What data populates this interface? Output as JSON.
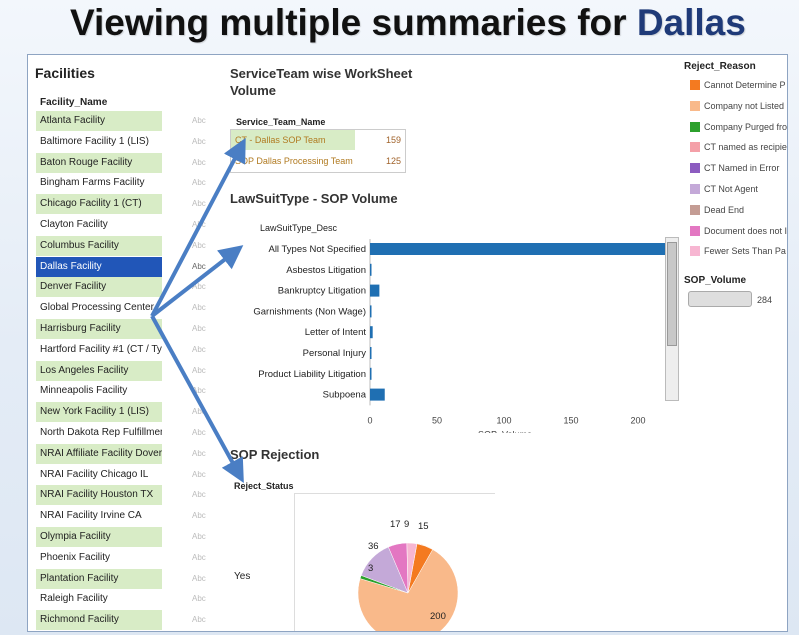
{
  "slide": {
    "title_prefix": "Viewing multiple summaries for ",
    "title_highlight": "Dallas"
  },
  "facilities": {
    "title": "Facilities",
    "column_header": "Facility_Name",
    "abc_label": "Abc",
    "selected": "Dallas Facility",
    "items": [
      "Atlanta Facility",
      "Baltimore Facility 1 (LIS)",
      "Baton Rouge Facility",
      "Bingham Farms Facility",
      "Chicago Facility 1 (CT)",
      "Clayton Facility",
      "Columbus Facility",
      "Dallas Facility",
      "Denver Facility",
      "Global Processing Center",
      "Harrisburg Facility",
      "Hartford Facility #1 (CT / TyM..",
      "Los Angeles Facility",
      "Minneapolis Facility",
      "New York Facility 1 (LIS)",
      "North Dakota Rep Fulfillment",
      "NRAI Affiliate Facility Dover ..",
      "NRAI Facility Chicago IL",
      "NRAI Facility Houston TX",
      "NRAI Facility Irvine CA",
      "Olympia Facility",
      "Phoenix Facility",
      "Plantation Facility",
      "Raleigh Facility",
      "Richmond Facility"
    ]
  },
  "service_team": {
    "title": "ServiceTeam wise WorkSheet Volume",
    "column_header": "Service_Team_Name",
    "rows": [
      {
        "name": "CT - Dallas SOP Team",
        "value": "159"
      },
      {
        "name": "SOP Dallas Processing Team",
        "value": "125"
      }
    ]
  },
  "lawsuit": {
    "title": "LawSuitType - SOP Volume",
    "column_header": "LawSuitType_Desc",
    "xlabel": "SOP_Volume",
    "xlim": [
      0,
      250
    ],
    "ticks": [
      0,
      50,
      100,
      150,
      200
    ],
    "bar_color": "#1f6fb2",
    "categories": [
      "All Types Not Specified",
      "Asbestos Litigation",
      "Bankruptcy Litigation",
      "Garnishments (Non Wage)",
      "Letter of Intent",
      "Personal Injury",
      "Product Liability Litigation",
      "Subpoena"
    ],
    "values": [
      230,
      1,
      7,
      1,
      2,
      1,
      1,
      11
    ]
  },
  "rejection": {
    "title": "SOP Rejection",
    "column_header": "Reject_Status",
    "row_label": "Yes"
  },
  "legend": {
    "title": "Reject_Reason",
    "items": [
      {
        "label": "Cannot Determine P",
        "color": "#f47a20"
      },
      {
        "label": "Company not Listed",
        "color": "#f9b98a"
      },
      {
        "label": "Company Purged fro",
        "color": "#2ca02c"
      },
      {
        "label": "CT named as recipie",
        "color": "#f4a0a8"
      },
      {
        "label": "CT Named in Error",
        "color": "#8c5cc0"
      },
      {
        "label": "CT Not Agent",
        "color": "#c4a9d8"
      },
      {
        "label": "Dead End",
        "color": "#c49c94"
      },
      {
        "label": "Document does not I",
        "color": "#e377c2"
      },
      {
        "label": "Fewer Sets Than Pa",
        "color": "#f7b6d2"
      }
    ],
    "sop_volume_title": "SOP_Volume",
    "sop_volume_value": "284"
  },
  "chart_data": [
    {
      "type": "bar",
      "title": "LawSuitType - SOP Volume",
      "xlabel": "SOP_Volume",
      "ylabel": "LawSuitType_Desc",
      "categories": [
        "All Types Not Specified",
        "Asbestos Litigation",
        "Bankruptcy Litigation",
        "Garnishments (Non Wage)",
        "Letter of Intent",
        "Personal Injury",
        "Product Liability Litigation",
        "Subpoena"
      ],
      "values": [
        230,
        1,
        7,
        1,
        2,
        1,
        1,
        11
      ],
      "xlim": [
        0,
        250
      ]
    },
    {
      "type": "pie",
      "title": "SOP Rejection",
      "slices": [
        {
          "label": "Cannot Determine P",
          "value": 15,
          "color": "#f47a20"
        },
        {
          "label": "Company not Listed",
          "value": 200,
          "color": "#f9b98a"
        },
        {
          "label": "Company Purged fro",
          "value": 3,
          "color": "#2ca02c"
        },
        {
          "label": "CT Not Agent",
          "value": 36,
          "color": "#c4a9d8"
        },
        {
          "label": "Document does not I",
          "value": 17,
          "color": "#e377c2"
        },
        {
          "label": "Fewer Sets Than Pa",
          "value": 9,
          "color": "#f7b6d2"
        }
      ],
      "data_labels": [
        "15",
        "200",
        "3",
        "36",
        "17",
        "9"
      ]
    }
  ]
}
